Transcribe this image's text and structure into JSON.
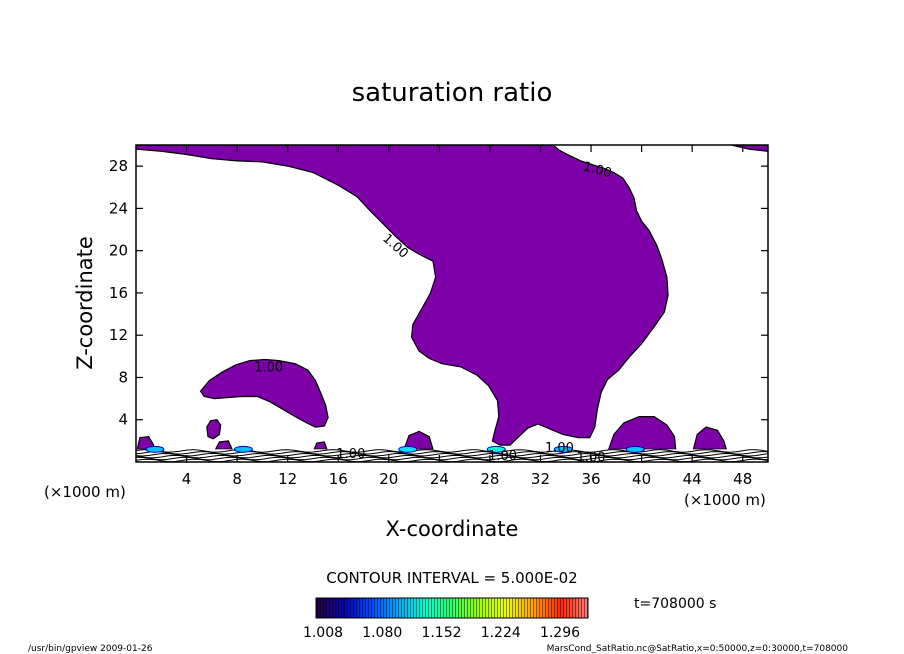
{
  "chart_data": {
    "type": "contour",
    "title": "saturation ratio",
    "xlabel": "X-coordinate",
    "ylabel": "Z-coordinate",
    "x_unit_note": "(×1000 m)",
    "y_unit_note": "(×1000 m)",
    "xlim": [
      0,
      50
    ],
    "ylim": [
      0,
      30
    ],
    "x_ticks": [
      4,
      8,
      12,
      16,
      20,
      24,
      28,
      32,
      36,
      40,
      44,
      48
    ],
    "y_ticks": [
      4,
      8,
      12,
      16,
      20,
      24,
      28
    ],
    "contour_interval_label": "CONTOUR INTERVAL = 5.000E-02",
    "contour_labels": [
      {
        "text": "1.00",
        "x": 36.5,
        "y": 27.6,
        "angle": 15
      },
      {
        "text": "1.00",
        "x": 20.5,
        "y": 20.4,
        "angle": 42
      },
      {
        "text": "1.00",
        "x": 10.5,
        "y": 8.9,
        "angle": 0
      },
      {
        "text": "1.00",
        "x": 17.0,
        "y": 0.7,
        "angle": 0
      },
      {
        "text": "1.00",
        "x": 29.0,
        "y": 0.5,
        "angle": 0
      },
      {
        "text": "1.00",
        "x": 33.5,
        "y": 1.3,
        "angle": 0
      },
      {
        "text": "1.00",
        "x": 36.0,
        "y": 0.4,
        "angle": 0
      }
    ],
    "regions": [
      {
        "name": "plume",
        "level": 1.0,
        "points": [
          [
            0,
            29.6
          ],
          [
            2,
            29.4
          ],
          [
            4,
            29.1
          ],
          [
            6,
            28.7
          ],
          [
            8,
            28.5
          ],
          [
            10,
            28.4
          ],
          [
            12,
            28.0
          ],
          [
            14,
            27.4
          ],
          [
            15,
            26.8
          ],
          [
            16,
            26.2
          ],
          [
            17.5,
            25.1
          ],
          [
            18.5,
            23.8
          ],
          [
            19.5,
            22.6
          ],
          [
            20.5,
            21.4
          ],
          [
            21.5,
            20.3
          ],
          [
            22.5,
            19.6
          ],
          [
            23.5,
            19.0
          ],
          [
            23.7,
            17.5
          ],
          [
            23.3,
            16.0
          ],
          [
            22.6,
            14.5
          ],
          [
            21.9,
            13.0
          ],
          [
            21.8,
            11.8
          ],
          [
            22.4,
            10.5
          ],
          [
            23.2,
            9.8
          ],
          [
            24.2,
            9.3
          ],
          [
            25.7,
            9.0
          ],
          [
            27.0,
            8.2
          ],
          [
            27.9,
            7.2
          ],
          [
            28.6,
            5.8
          ],
          [
            28.7,
            4.3
          ],
          [
            28.4,
            3.0
          ],
          [
            28.2,
            2.0
          ],
          [
            28.8,
            1.6
          ],
          [
            29.6,
            1.6
          ],
          [
            30.2,
            2.3
          ],
          [
            31.0,
            3.2
          ],
          [
            31.8,
            3.6
          ],
          [
            32.6,
            3.2
          ],
          [
            33.8,
            2.6
          ],
          [
            35.0,
            2.3
          ],
          [
            35.9,
            2.3
          ],
          [
            36.3,
            3.3
          ],
          [
            36.5,
            5.0
          ],
          [
            36.8,
            6.6
          ],
          [
            37.3,
            7.8
          ],
          [
            38.2,
            8.7
          ],
          [
            39.0,
            9.9
          ],
          [
            40.0,
            11.2
          ],
          [
            41.0,
            12.8
          ],
          [
            41.8,
            14.2
          ],
          [
            42.1,
            15.8
          ],
          [
            42.0,
            17.5
          ],
          [
            41.6,
            19.2
          ],
          [
            41.2,
            20.5
          ],
          [
            40.6,
            21.9
          ],
          [
            40.0,
            22.8
          ],
          [
            39.6,
            23.8
          ],
          [
            39.4,
            25.0
          ],
          [
            39.0,
            26.0
          ],
          [
            38.5,
            26.9
          ],
          [
            37.8,
            27.4
          ],
          [
            37.0,
            27.8
          ],
          [
            36.2,
            28.1
          ],
          [
            35.2,
            28.5
          ],
          [
            34.3,
            29.0
          ],
          [
            33.5,
            29.5
          ],
          [
            33.0,
            30.0
          ],
          [
            0,
            30.0
          ]
        ]
      },
      {
        "name": "top-right-sliver",
        "level": 1.0,
        "points": [
          [
            47.1,
            30.0
          ],
          [
            48.5,
            29.6
          ],
          [
            50.0,
            29.4
          ],
          [
            50.0,
            30.0
          ]
        ]
      },
      {
        "name": "left-blob",
        "level": 1.0,
        "points": [
          [
            5.1,
            6.7
          ],
          [
            5.8,
            7.7
          ],
          [
            6.8,
            8.5
          ],
          [
            7.9,
            9.2
          ],
          [
            9.0,
            9.6
          ],
          [
            10.2,
            9.7
          ],
          [
            11.3,
            9.6
          ],
          [
            12.6,
            9.3
          ],
          [
            13.6,
            8.7
          ],
          [
            14.2,
            7.7
          ],
          [
            14.6,
            6.6
          ],
          [
            15.0,
            5.4
          ],
          [
            15.2,
            4.2
          ],
          [
            14.9,
            3.4
          ],
          [
            14.2,
            3.3
          ],
          [
            13.5,
            3.7
          ],
          [
            12.6,
            4.3
          ],
          [
            11.6,
            5.0
          ],
          [
            10.6,
            5.7
          ],
          [
            9.6,
            6.2
          ],
          [
            8.4,
            6.2
          ],
          [
            7.3,
            6.1
          ],
          [
            6.2,
            6.0
          ],
          [
            5.4,
            6.2
          ]
        ]
      },
      {
        "name": "small-blob-6",
        "level": 1.0,
        "points": [
          [
            5.6,
            3.3
          ],
          [
            5.9,
            3.9
          ],
          [
            6.4,
            4.0
          ],
          [
            6.7,
            3.5
          ],
          [
            6.6,
            2.6
          ],
          [
            6.1,
            2.2
          ],
          [
            5.7,
            2.4
          ]
        ]
      },
      {
        "name": "blob-40",
        "level": 1.0,
        "points": [
          [
            37.4,
            1.2
          ],
          [
            37.8,
            2.6
          ],
          [
            38.6,
            3.7
          ],
          [
            39.8,
            4.3
          ],
          [
            41.0,
            4.3
          ],
          [
            42.0,
            3.5
          ],
          [
            42.6,
            2.4
          ],
          [
            42.7,
            1.2
          ]
        ]
      },
      {
        "name": "blob-45",
        "level": 1.0,
        "points": [
          [
            44.1,
            1.2
          ],
          [
            44.4,
            2.6
          ],
          [
            45.1,
            3.3
          ],
          [
            46.0,
            3.0
          ],
          [
            46.5,
            2.0
          ],
          [
            46.7,
            1.2
          ]
        ]
      },
      {
        "name": "blob-22",
        "level": 1.0,
        "points": [
          [
            21.2,
            1.2
          ],
          [
            21.6,
            2.5
          ],
          [
            22.4,
            2.9
          ],
          [
            23.2,
            2.4
          ],
          [
            23.5,
            1.2
          ]
        ]
      },
      {
        "name": "blob-1",
        "level": 1.0,
        "points": [
          [
            0.1,
            1.2
          ],
          [
            0.3,
            2.3
          ],
          [
            1.0,
            2.4
          ],
          [
            1.4,
            1.6
          ],
          [
            1.3,
            1.2
          ]
        ]
      },
      {
        "name": "blob-7",
        "level": 1.0,
        "points": [
          [
            6.3,
            1.2
          ],
          [
            6.6,
            1.9
          ],
          [
            7.3,
            2.0
          ],
          [
            7.6,
            1.2
          ]
        ]
      },
      {
        "name": "blob-14",
        "level": 1.0,
        "points": [
          [
            14.1,
            1.2
          ],
          [
            14.3,
            1.8
          ],
          [
            14.9,
            1.9
          ],
          [
            15.1,
            1.2
          ]
        ]
      }
    ],
    "fill_color": "#7d00a8",
    "contour_line_color": "#000000",
    "colorbar": {
      "ticks": [
        "1.008",
        "1.080",
        "1.152",
        "1.224",
        "1.296"
      ],
      "colors": [
        "#24003a",
        "#0b00aa",
        "#0045ff",
        "#00a6ff",
        "#00ffd0",
        "#30ff70",
        "#9cff00",
        "#eefe00",
        "#ffa000",
        "#ff2a00",
        "#ff7a7a"
      ]
    }
  },
  "time_label": "t=708000 s",
  "footer_left": "/usr/bin/gpview   2009-01-26",
  "footer_right": "MarsCond_SatRatio.nc@SatRatio,x=0:50000,z=0:30000,t=708000"
}
